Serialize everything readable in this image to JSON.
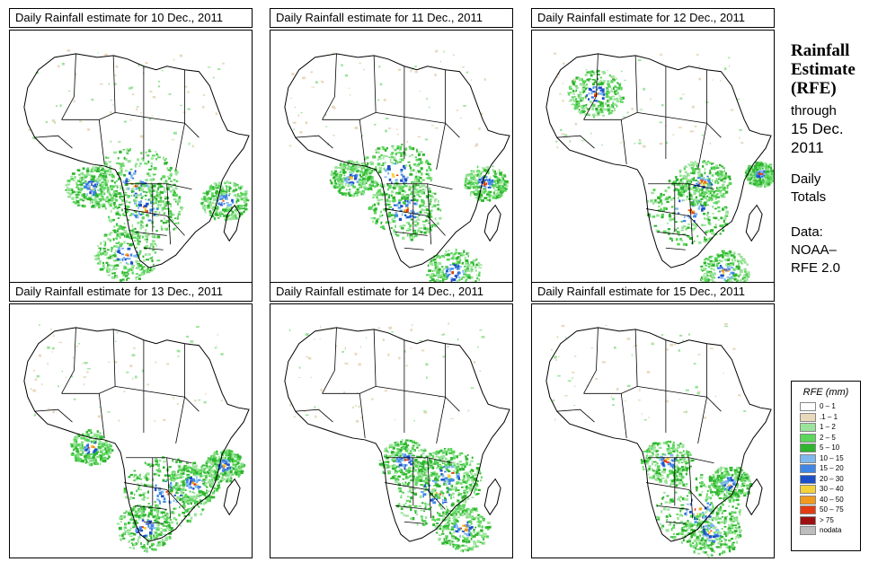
{
  "panels": [
    {
      "title": "Daily Rainfall estimate for  10 Dec., 2011",
      "day": 10
    },
    {
      "title": "Daily Rainfall estimate for  11 Dec., 2011",
      "day": 11
    },
    {
      "title": "Daily Rainfall estimate for  12 Dec., 2011",
      "day": 12
    },
    {
      "title": "Daily Rainfall estimate for  13 Dec., 2011",
      "day": 13
    },
    {
      "title": "Daily Rainfall estimate for  14 Dec., 2011",
      "day": 14
    },
    {
      "title": "Daily Rainfall estimate for  15 Dec., 2011",
      "day": 15
    }
  ],
  "sidebar": {
    "title_line1": "Rainfall",
    "title_line2": "Estimate",
    "title_line3": "(RFE)",
    "through": "through",
    "date_line1": "15 Dec.",
    "date_line2": "2011",
    "daily": "Daily",
    "totals": "Totals",
    "data_label": "Data:",
    "source_line1": "NOAA–",
    "source_line2": "RFE 2.0"
  },
  "legend": {
    "title": "RFE (mm)",
    "classes": [
      {
        "label": "0 – 1",
        "color": "#ffffff"
      },
      {
        "label": ".1 – 1",
        "color": "#e8d8bc"
      },
      {
        "label": "1 – 2",
        "color": "#9be39b"
      },
      {
        "label": "2 – 5",
        "color": "#5cd65c"
      },
      {
        "label": "5 – 10",
        "color": "#2fb52f"
      },
      {
        "label": "10 – 15",
        "color": "#7fb8ee"
      },
      {
        "label": "15 – 20",
        "color": "#3f86e6"
      },
      {
        "label": "20 – 30",
        "color": "#1c4fc8"
      },
      {
        "label": "30 – 40",
        "color": "#f5d23a"
      },
      {
        "label": "40 – 50",
        "color": "#f29a1e"
      },
      {
        "label": "50 – 75",
        "color": "#e23c12"
      },
      {
        "label": "> 75",
        "color": "#9e1010"
      },
      {
        "label": "nodata",
        "color": "#bdbdbd"
      }
    ]
  }
}
